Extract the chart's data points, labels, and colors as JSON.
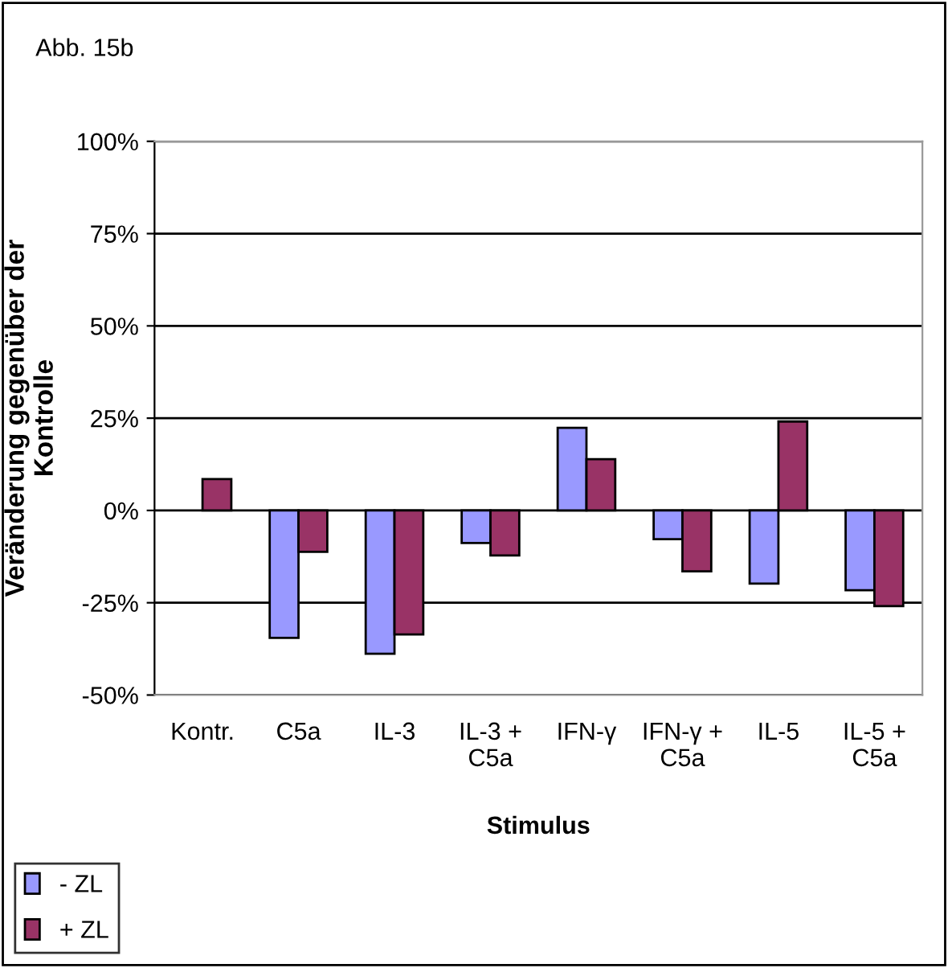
{
  "chart_data": {
    "type": "bar",
    "title": "Abb. 15b",
    "xlabel": "Stimulus",
    "ylabel": "Veränderung gegenüber der\nKontrolle",
    "categories": [
      "Kontr.",
      "C5a",
      "IL-3",
      "IL-3 +\nC5a",
      "IFN-γ",
      "IFN-γ +\nC5a",
      "IL-5",
      "IL-5 +\nC5a"
    ],
    "series": [
      {
        "name": "- ZL",
        "color": "#9999ff",
        "values": [
          null,
          -34.5,
          -38.8,
          -8.8,
          22.4,
          -7.8,
          -19.8,
          -21.6
        ]
      },
      {
        "name": "+ ZL",
        "color": "#993366",
        "values": [
          8.5,
          -11.2,
          -33.6,
          -12.2,
          13.9,
          -16.5,
          24.1,
          -25.9
        ]
      }
    ],
    "ylim": [
      -50,
      100
    ],
    "yticks": [
      {
        "value": -50,
        "label": "-50%"
      },
      {
        "value": -25,
        "label": "-25%"
      },
      {
        "value": 0,
        "label": "0%"
      },
      {
        "value": 25,
        "label": "25%"
      },
      {
        "value": 50,
        "label": "50%"
      },
      {
        "value": 75,
        "label": "75%"
      },
      {
        "value": 100,
        "label": "100%"
      }
    ],
    "grid": "y",
    "legend": "bottom left"
  }
}
